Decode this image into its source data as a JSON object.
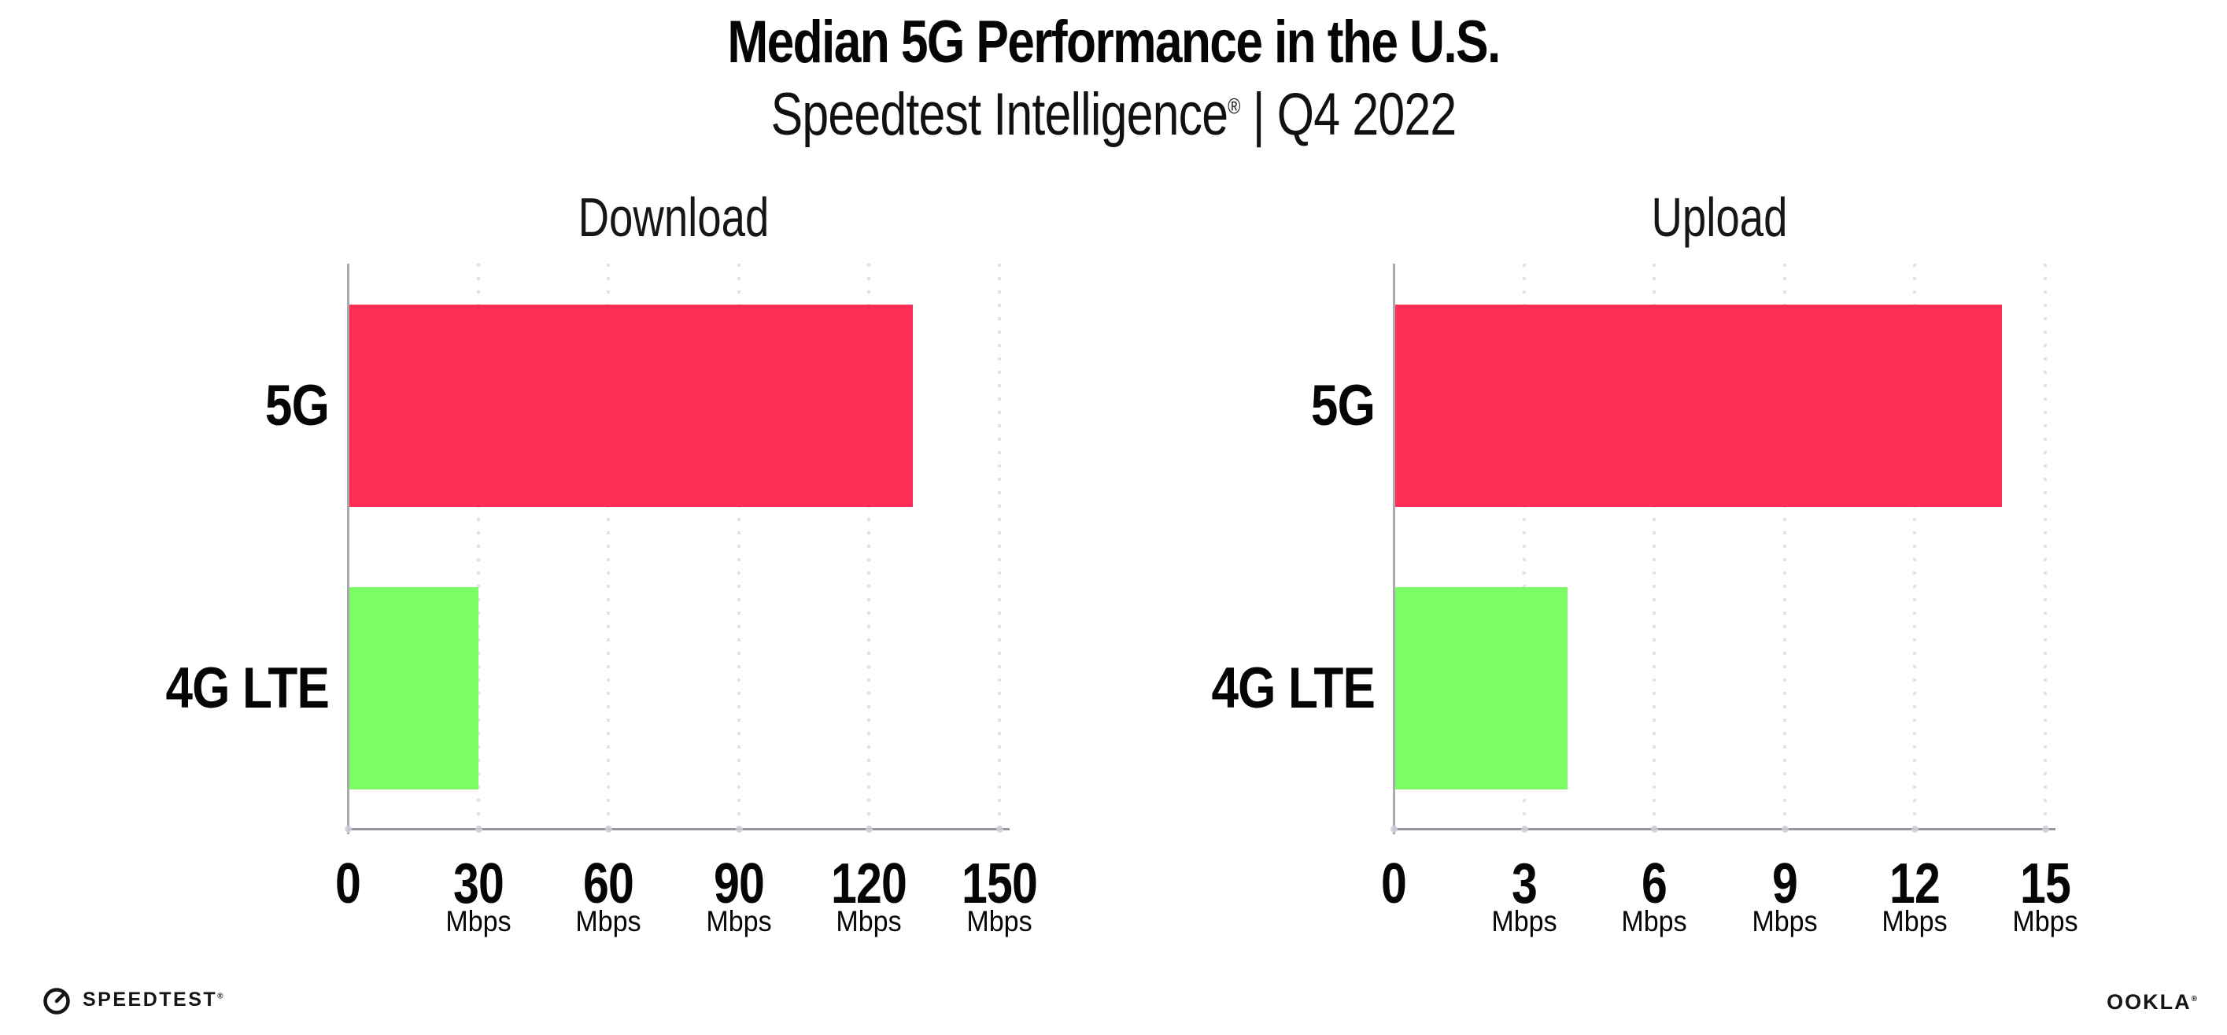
{
  "header": {
    "title": "Median 5G Performance in the U.S.",
    "subtitle_brand": "Speedtest Intelligence",
    "registered_mark": "®",
    "subtitle_rest": " | Q4 2022"
  },
  "colors": {
    "bar_5g": "#FE2D55",
    "bar_4g": "#7CFD65",
    "gridline": "#E2E2EC",
    "y_axis": "#A9A9B0",
    "x_axis": "#95959D",
    "text": "#050505"
  },
  "chart_data": [
    {
      "type": "bar",
      "orientation": "horizontal",
      "title": "Download",
      "categories": [
        "5G",
        "4G LTE"
      ],
      "values": [
        130,
        30
      ],
      "unit": "Mbps",
      "xlim": [
        0,
        150
      ],
      "xticks": [
        0,
        30,
        60,
        90,
        120,
        150
      ],
      "grid": "dotted-vertical",
      "legend": "none",
      "bar_colors": [
        "#FE2D55",
        "#7CFD65"
      ]
    },
    {
      "type": "bar",
      "orientation": "horizontal",
      "title": "Upload",
      "categories": [
        "5G",
        "4G LTE"
      ],
      "values": [
        14,
        4
      ],
      "unit": "Mbps",
      "xlim": [
        0,
        15
      ],
      "xticks": [
        0,
        3,
        6,
        9,
        12,
        15
      ],
      "grid": "dotted-vertical",
      "legend": "none",
      "bar_colors": [
        "#FE2D55",
        "#7CFD65"
      ]
    }
  ],
  "footer": {
    "speedtest_label": "SPEEDTEST",
    "speedtest_mark": "®",
    "speedtest_icon": "speedtest-gauge-icon",
    "ookla_label": "OOKLA",
    "ookla_mark": "®"
  }
}
